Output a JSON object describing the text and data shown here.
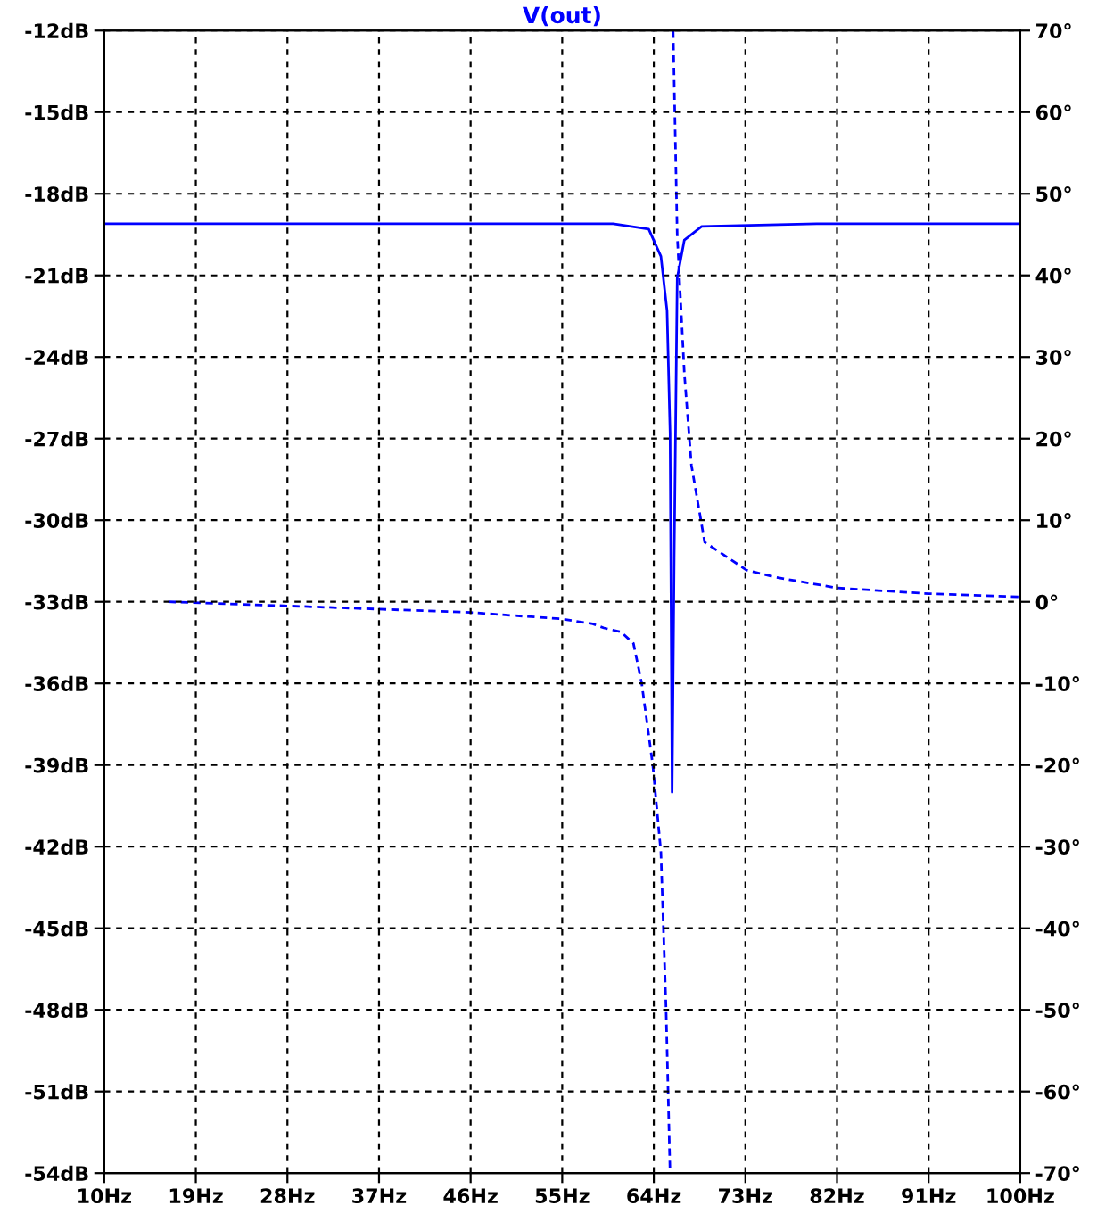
{
  "chart_data": {
    "type": "line",
    "title": "V(out)",
    "grid": true,
    "legend": false,
    "xlim": [
      10,
      100
    ],
    "xticks": [
      {
        "value": 10,
        "label": "10Hz"
      },
      {
        "value": 19,
        "label": "19Hz"
      },
      {
        "value": 28,
        "label": "28Hz"
      },
      {
        "value": 37,
        "label": "37Hz"
      },
      {
        "value": 46,
        "label": "46Hz"
      },
      {
        "value": 55,
        "label": "55Hz"
      },
      {
        "value": 64,
        "label": "64Hz"
      },
      {
        "value": 73,
        "label": "73Hz"
      },
      {
        "value": 82,
        "label": "82Hz"
      },
      {
        "value": 91,
        "label": "91Hz"
      },
      {
        "value": 100,
        "label": "100Hz"
      }
    ],
    "ylim": [
      -54,
      -12
    ],
    "yticks": [
      {
        "value": -54,
        "label": "-54dB"
      },
      {
        "value": -51,
        "label": "-51dB"
      },
      {
        "value": -48,
        "label": "-48dB"
      },
      {
        "value": -45,
        "label": "-45dB"
      },
      {
        "value": -42,
        "label": "-42dB"
      },
      {
        "value": -39,
        "label": "-39dB"
      },
      {
        "value": -36,
        "label": "-36dB"
      },
      {
        "value": -33,
        "label": "-33dB"
      },
      {
        "value": -30,
        "label": "-30dB"
      },
      {
        "value": -27,
        "label": "-27dB"
      },
      {
        "value": -24,
        "label": "-24dB"
      },
      {
        "value": -21,
        "label": "-21dB"
      },
      {
        "value": -18,
        "label": "-18dB"
      },
      {
        "value": -15,
        "label": "-15dB"
      },
      {
        "value": -12,
        "label": "-12dB"
      }
    ],
    "y2lim": [
      -70,
      70
    ],
    "y2ticks": [
      {
        "value": -70,
        "label": "-70°"
      },
      {
        "value": -60,
        "label": "-60°"
      },
      {
        "value": -50,
        "label": "-50°"
      },
      {
        "value": -40,
        "label": "-40°"
      },
      {
        "value": -30,
        "label": "-30°"
      },
      {
        "value": -20,
        "label": "-20°"
      },
      {
        "value": -10,
        "label": "-10°"
      },
      {
        "value": 0,
        "label": "0°"
      },
      {
        "value": 10,
        "label": "10°"
      },
      {
        "value": 20,
        "label": "20°"
      },
      {
        "value": 30,
        "label": "30°"
      },
      {
        "value": 40,
        "label": "40°"
      },
      {
        "value": 50,
        "label": "50°"
      },
      {
        "value": 60,
        "label": "60°"
      },
      {
        "value": 70,
        "label": "70°"
      }
    ],
    "series": [
      {
        "color": "#0000ff",
        "line_style": "solid",
        "x": [
          10,
          30,
          50,
          60,
          63.5,
          64.7,
          65.3,
          65.6,
          65.8,
          66.0,
          66.3,
          67.0,
          68.7,
          80,
          100
        ],
        "values": [
          -19.1,
          -19.1,
          -19.1,
          -19.1,
          -19.3,
          -20.3,
          -22.3,
          -26.8,
          -40,
          -31.4,
          -21.1,
          -19.7,
          -19.2,
          -19.1,
          -19.1
        ]
      },
      {
        "color": "#0000ff",
        "line_style": "dashed",
        "axis": "y2",
        "x": [
          16.3,
          28,
          37,
          46,
          55,
          58,
          59.1,
          60.8,
          62,
          62.8,
          63.9,
          64.7,
          65.2,
          65.6,
          65.75,
          65.9,
          66.3,
          67.0,
          67.7,
          69,
          73.1,
          76,
          82,
          91,
          100
        ],
        "values": [
          0,
          -0.5,
          -0.9,
          -1.3,
          -2.1,
          -2.7,
          -3.2,
          -3.7,
          -5.1,
          -9.9,
          -20,
          -30.7,
          -49.7,
          -70,
          null,
          70,
          45,
          28,
          16.7,
          7.3,
          3.9,
          3.0,
          1.7,
          1.0,
          0.6
        ]
      }
    ]
  }
}
